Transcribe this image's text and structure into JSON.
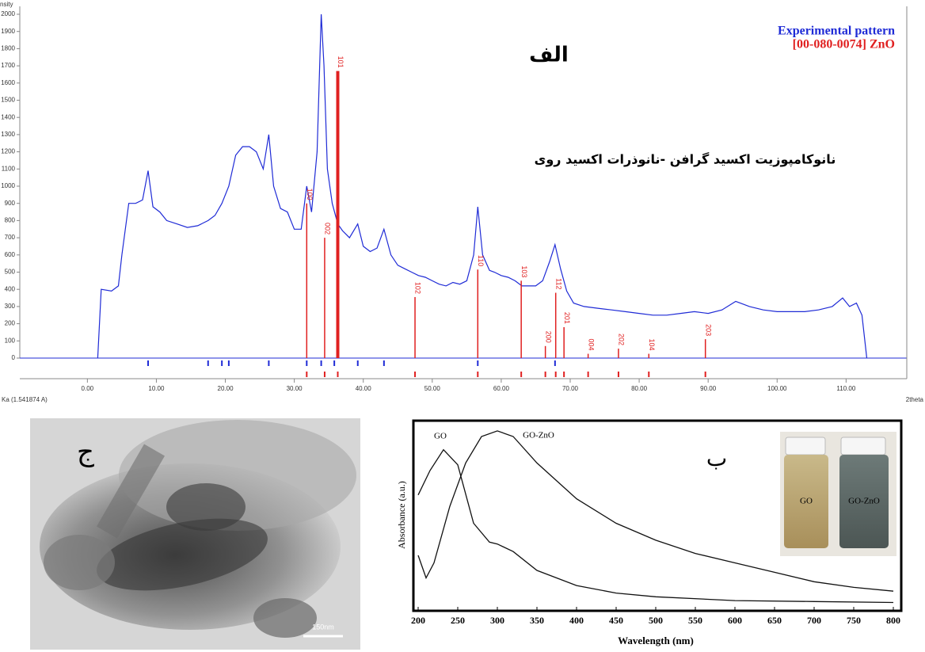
{
  "chart_data": [
    {
      "type": "line",
      "y_label": "nsity",
      "x_label": "2theta",
      "x_note": "Ka (1.541874 A)",
      "annotations": [
        "الف",
        "نانوکامپوزیت اکسید گرافن -نانوذرات اکسید روی"
      ],
      "xlim": [
        -9.8,
        118.8
      ],
      "ylim": [
        0,
        2000
      ],
      "xticks": [
        {
          "value": 0,
          "label": "0.00"
        },
        {
          "value": 10,
          "label": "10.00"
        },
        {
          "value": 20,
          "label": "20.00"
        },
        {
          "value": 30,
          "label": "30.00"
        },
        {
          "value": 40,
          "label": "40.00"
        },
        {
          "value": 50,
          "label": "50.00"
        },
        {
          "value": 60,
          "label": "60.00"
        },
        {
          "value": 70,
          "label": "70.00"
        },
        {
          "value": 80,
          "label": "80.00"
        },
        {
          "value": 90,
          "label": "90.00"
        },
        {
          "value": 100,
          "label": "100.00"
        },
        {
          "value": 110,
          "label": "110.00"
        }
      ],
      "yticks": [
        0,
        100,
        200,
        300,
        400,
        500,
        600,
        700,
        800,
        900,
        1000,
        1100,
        1200,
        1300,
        1400,
        1500,
        1600,
        1700,
        1800,
        1900,
        2000
      ],
      "series": [
        {
          "name": "Experimental pattern",
          "color": "#1f2bd6",
          "x": [
            1.5,
            2.0,
            3.5,
            4.5,
            5,
            6,
            7,
            8,
            8.8,
            9.5,
            10.5,
            11.5,
            13,
            14.5,
            16,
            17.5,
            18.5,
            19.5,
            20.5,
            21.5,
            22.5,
            23.5,
            24.5,
            25.5,
            26.3,
            27,
            28,
            29,
            30,
            31,
            31.8,
            32.5,
            33.3,
            33.9,
            34.3,
            34.8,
            35.5,
            36.3,
            37,
            38,
            39.2,
            40,
            41,
            42,
            43,
            44,
            45,
            46,
            47,
            48,
            49,
            50,
            51,
            52,
            53,
            54,
            55,
            56,
            56.6,
            57.3,
            58.3,
            59,
            60,
            61,
            62,
            63,
            64,
            65,
            66,
            67,
            67.8,
            68.6,
            69.5,
            70.5,
            72,
            74,
            76,
            78,
            80,
            82,
            84,
            86,
            88,
            90,
            92,
            94,
            96,
            98,
            100,
            102,
            104,
            106,
            108,
            109.5,
            110.5,
            111.5,
            112.3,
            113
          ],
          "values": [
            0,
            400,
            390,
            420,
            600,
            900,
            900,
            920,
            1090,
            880,
            850,
            800,
            780,
            760,
            770,
            800,
            830,
            900,
            1000,
            1180,
            1230,
            1230,
            1200,
            1100,
            1300,
            1000,
            870,
            850,
            750,
            750,
            1000,
            850,
            1200,
            2000,
            1700,
            1100,
            900,
            780,
            740,
            700,
            780,
            650,
            620,
            640,
            750,
            600,
            540,
            520,
            500,
            480,
            470,
            450,
            430,
            420,
            440,
            430,
            450,
            600,
            880,
            600,
            510,
            500,
            480,
            470,
            450,
            420,
            420,
            420,
            450,
            560,
            660,
            520,
            390,
            320,
            300,
            290,
            280,
            270,
            260,
            250,
            250,
            260,
            270,
            260,
            280,
            330,
            300,
            280,
            270,
            270,
            270,
            280,
            300,
            350,
            300,
            320,
            250,
            0
          ]
        },
        {
          "name": "[00-080-0074] ZnO",
          "color": "#e02020",
          "style": "stick",
          "x": [
            31.8,
            34.4,
            36.3,
            47.5,
            56.6,
            62.9,
            66.4,
            67.9,
            69.1,
            72.6,
            77.0,
            81.4,
            89.6
          ],
          "values": [
            900,
            700,
            1670,
            355,
            515,
            450,
            70,
            380,
            180,
            25,
            55,
            25,
            110
          ],
          "peak_labels": [
            "100",
            "002",
            "101",
            "102",
            "110",
            "103",
            "200",
            "112",
            "201",
            "004",
            "202",
            "104",
            "203"
          ]
        }
      ],
      "peak_markers": [
        8.8,
        17.5,
        19.5,
        20.5,
        26.3,
        31.8,
        33.9,
        35.8,
        39.2,
        43,
        56.6,
        67.8
      ]
    },
    {
      "type": "line",
      "x_label": "Wavelength (nm)",
      "y_label": "Absorbance (a.u.)",
      "annotations": [
        "ب"
      ],
      "xlim": [
        200,
        800
      ],
      "ylim": [
        0,
        1
      ],
      "xticks": [
        200,
        250,
        300,
        350,
        400,
        450,
        500,
        550,
        600,
        650,
        700,
        750,
        800
      ],
      "series": [
        {
          "name": "GO",
          "color": "#111111",
          "x": [
            200,
            215,
            232,
            250,
            270,
            290,
            300,
            320,
            350,
            400,
            450,
            500,
            600,
            700,
            800
          ],
          "values": [
            0.61,
            0.74,
            0.85,
            0.77,
            0.46,
            0.36,
            0.35,
            0.31,
            0.21,
            0.13,
            0.09,
            0.07,
            0.05,
            0.045,
            0.04
          ]
        },
        {
          "name": "GO-ZnO",
          "color": "#111111",
          "x": [
            200,
            210,
            220,
            240,
            260,
            280,
            300,
            320,
            350,
            400,
            450,
            500,
            550,
            600,
            650,
            700,
            750,
            800
          ],
          "values": [
            0.29,
            0.17,
            0.25,
            0.55,
            0.78,
            0.92,
            0.95,
            0.92,
            0.78,
            0.59,
            0.46,
            0.37,
            0.3,
            0.25,
            0.2,
            0.15,
            0.12,
            0.1
          ]
        }
      ]
    }
  ],
  "image": {
    "label": "ج",
    "scale_bar": "150nm"
  }
}
